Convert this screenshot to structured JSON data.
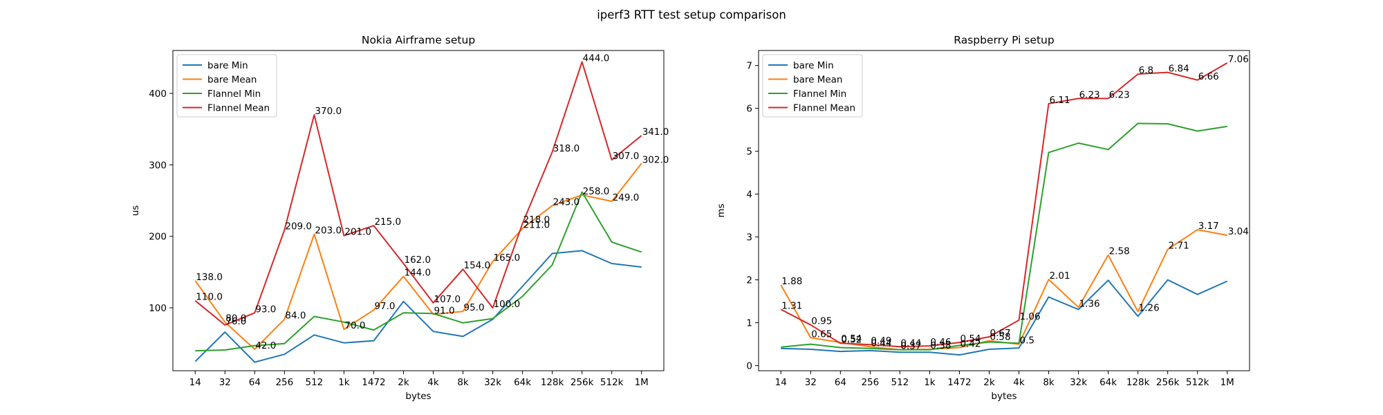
{
  "figure": {
    "title": "iperf3 RTT test setup comparison"
  },
  "colors": {
    "bare_min": "#1f77b4",
    "bare_mean": "#ff7f0e",
    "flannel_min": "#2ca02c",
    "flannel_mean": "#d62728"
  },
  "chart_data": [
    {
      "type": "line",
      "title": "Nokia Airframe setup",
      "xlabel": "bytes",
      "ylabel": "us",
      "categories": [
        "14",
        "32",
        "64",
        "256",
        "512",
        "1k",
        "1472",
        "2k",
        "4k",
        "8k",
        "32k",
        "64k",
        "128k",
        "256k",
        "512k",
        "1M"
      ],
      "ylim": [
        12,
        460
      ],
      "yticks": [
        100,
        200,
        300,
        400
      ],
      "grid": false,
      "legend": "top-left",
      "series": [
        {
          "name": "bare Min",
          "color": "#1f77b4",
          "values": [
            25,
            66,
            24,
            35,
            62,
            51,
            54,
            109,
            67,
            60,
            84,
            130,
            176,
            180,
            162,
            157
          ]
        },
        {
          "name": "bare Mean",
          "color": "#ff7f0e",
          "values": [
            138.0,
            80.0,
            42.0,
            84.0,
            203.0,
            70.0,
            97.0,
            144.0,
            91.0,
            95.0,
            165.0,
            211.0,
            243.0,
            258.0,
            249.0,
            302.0
          ]
        },
        {
          "name": "Flannel Min",
          "color": "#2ca02c",
          "values": [
            40,
            41,
            47,
            50,
            88,
            80,
            69,
            93,
            92,
            79,
            85,
            116,
            160,
            262,
            192,
            178
          ]
        },
        {
          "name": "Flannel Mean",
          "color": "#d62728",
          "values": [
            110.0,
            76.0,
            93.0,
            209.0,
            370.0,
            201.0,
            215.0,
            162.0,
            107.0,
            154.0,
            100.0,
            218.0,
            318.0,
            444.0,
            307.0,
            341.0
          ]
        }
      ],
      "data_labels": [
        {
          "cat": 0,
          "value": 138.0,
          "text": "138.0"
        },
        {
          "cat": 1,
          "value": 80.0,
          "text": "80.0"
        },
        {
          "cat": 2,
          "value": 42.0,
          "text": "42.0"
        },
        {
          "cat": 3,
          "value": 84.0,
          "text": "84.0"
        },
        {
          "cat": 4,
          "value": 203.0,
          "text": "203.0"
        },
        {
          "cat": 5,
          "value": 70.0,
          "text": "70.0"
        },
        {
          "cat": 6,
          "value": 97.0,
          "text": "97.0"
        },
        {
          "cat": 7,
          "value": 144.0,
          "text": "144.0"
        },
        {
          "cat": 8,
          "value": 91.0,
          "text": "91.0"
        },
        {
          "cat": 9,
          "value": 95.0,
          "text": "95.0"
        },
        {
          "cat": 10,
          "value": 165.0,
          "text": "165.0"
        },
        {
          "cat": 11,
          "value": 211.0,
          "text": "211.0"
        },
        {
          "cat": 12,
          "value": 243.0,
          "text": "243.0"
        },
        {
          "cat": 13,
          "value": 258.0,
          "text": "258.0"
        },
        {
          "cat": 14,
          "value": 249.0,
          "text": "249.0"
        },
        {
          "cat": 15,
          "value": 302.0,
          "text": "302.0"
        },
        {
          "cat": 0,
          "value": 110.0,
          "text": "110.0"
        },
        {
          "cat": 1,
          "value": 76.0,
          "text": "76.0"
        },
        {
          "cat": 2,
          "value": 93.0,
          "text": "93.0"
        },
        {
          "cat": 3,
          "value": 209.0,
          "text": "209.0"
        },
        {
          "cat": 4,
          "value": 370.0,
          "text": "370.0"
        },
        {
          "cat": 5,
          "value": 201.0,
          "text": "201.0"
        },
        {
          "cat": 6,
          "value": 215.0,
          "text": "215.0"
        },
        {
          "cat": 7,
          "value": 162.0,
          "text": "162.0"
        },
        {
          "cat": 8,
          "value": 107.0,
          "text": "107.0"
        },
        {
          "cat": 9,
          "value": 154.0,
          "text": "154.0"
        },
        {
          "cat": 10,
          "value": 100.0,
          "text": "100.0"
        },
        {
          "cat": 11,
          "value": 218.0,
          "text": "218.0"
        },
        {
          "cat": 12,
          "value": 318.0,
          "text": "318.0"
        },
        {
          "cat": 13,
          "value": 444.0,
          "text": "444.0"
        },
        {
          "cat": 14,
          "value": 307.0,
          "text": "307.0"
        },
        {
          "cat": 15,
          "value": 341.0,
          "text": "341.0"
        }
      ]
    },
    {
      "type": "line",
      "title": "Raspberry Pi setup",
      "xlabel": "bytes",
      "ylabel": "ms",
      "categories": [
        "14",
        "32",
        "64",
        "256",
        "512",
        "1k",
        "1472",
        "2k",
        "4k",
        "8k",
        "32k",
        "64k",
        "128k",
        "256k",
        "512k",
        "1M"
      ],
      "ylim": [
        -0.12,
        7.35
      ],
      "yticks": [
        0,
        1,
        2,
        3,
        4,
        5,
        6,
        7
      ],
      "grid": false,
      "legend": "top-left",
      "series": [
        {
          "name": "bare Min",
          "color": "#1f77b4",
          "values": [
            0.4,
            0.38,
            0.33,
            0.35,
            0.31,
            0.31,
            0.25,
            0.38,
            0.41,
            1.6,
            1.31,
            1.99,
            1.15,
            2.0,
            1.66,
            1.97
          ]
        },
        {
          "name": "bare Mean",
          "color": "#ff7f0e",
          "values": [
            1.88,
            0.65,
            0.54,
            0.44,
            0.37,
            0.38,
            0.42,
            0.58,
            0.5,
            2.01,
            1.36,
            2.58,
            1.26,
            2.71,
            3.17,
            3.04
          ]
        },
        {
          "name": "Flannel Min",
          "color": "#2ca02c",
          "values": [
            0.43,
            0.5,
            0.42,
            0.4,
            0.37,
            0.37,
            0.47,
            0.55,
            0.52,
            4.97,
            5.19,
            5.04,
            5.65,
            5.64,
            5.47,
            5.58
          ]
        },
        {
          "name": "Flannel Mean",
          "color": "#d62728",
          "values": [
            1.31,
            0.95,
            0.52,
            0.49,
            0.44,
            0.46,
            0.54,
            0.67,
            1.06,
            6.11,
            6.23,
            6.23,
            6.8,
            6.84,
            6.66,
            7.06
          ]
        }
      ],
      "data_labels": [
        {
          "cat": 0,
          "value": 1.88,
          "text": "1.88"
        },
        {
          "cat": 1,
          "value": 0.65,
          "text": "0.65"
        },
        {
          "cat": 2,
          "value": 0.54,
          "text": "0.54"
        },
        {
          "cat": 3,
          "value": 0.44,
          "text": "0.44"
        },
        {
          "cat": 4,
          "value": 0.37,
          "text": "0.37"
        },
        {
          "cat": 5,
          "value": 0.38,
          "text": "0.38"
        },
        {
          "cat": 6,
          "value": 0.42,
          "text": "0.42"
        },
        {
          "cat": 7,
          "value": 0.58,
          "text": "0.58"
        },
        {
          "cat": 8,
          "value": 0.5,
          "text": "0.5"
        },
        {
          "cat": 9,
          "value": 2.01,
          "text": "2.01"
        },
        {
          "cat": 10,
          "value": 1.36,
          "text": "1.36"
        },
        {
          "cat": 11,
          "value": 2.58,
          "text": "2.58"
        },
        {
          "cat": 12,
          "value": 1.26,
          "text": "1.26"
        },
        {
          "cat": 13,
          "value": 2.71,
          "text": "2.71"
        },
        {
          "cat": 14,
          "value": 3.17,
          "text": "3.17"
        },
        {
          "cat": 15,
          "value": 3.04,
          "text": "3.04"
        },
        {
          "cat": 0,
          "value": 1.31,
          "text": "1.31"
        },
        {
          "cat": 1,
          "value": 0.95,
          "text": "0.95"
        },
        {
          "cat": 2,
          "value": 0.52,
          "text": "0.52"
        },
        {
          "cat": 3,
          "value": 0.49,
          "text": "0.49"
        },
        {
          "cat": 4,
          "value": 0.44,
          "text": "0.44"
        },
        {
          "cat": 5,
          "value": 0.46,
          "text": "0.46"
        },
        {
          "cat": 6,
          "value": 0.54,
          "text": "0.54"
        },
        {
          "cat": 7,
          "value": 0.67,
          "text": "0.67"
        },
        {
          "cat": 8,
          "value": 1.06,
          "text": "1.06"
        },
        {
          "cat": 9,
          "value": 6.11,
          "text": "6.11"
        },
        {
          "cat": 10,
          "value": 6.23,
          "text": "6.23"
        },
        {
          "cat": 11,
          "value": 6.23,
          "text": "6.23"
        },
        {
          "cat": 12,
          "value": 6.8,
          "text": "6.8"
        },
        {
          "cat": 13,
          "value": 6.84,
          "text": "6.84"
        },
        {
          "cat": 14,
          "value": 6.66,
          "text": "6.66"
        },
        {
          "cat": 15,
          "value": 7.06,
          "text": "7.06"
        }
      ]
    }
  ]
}
